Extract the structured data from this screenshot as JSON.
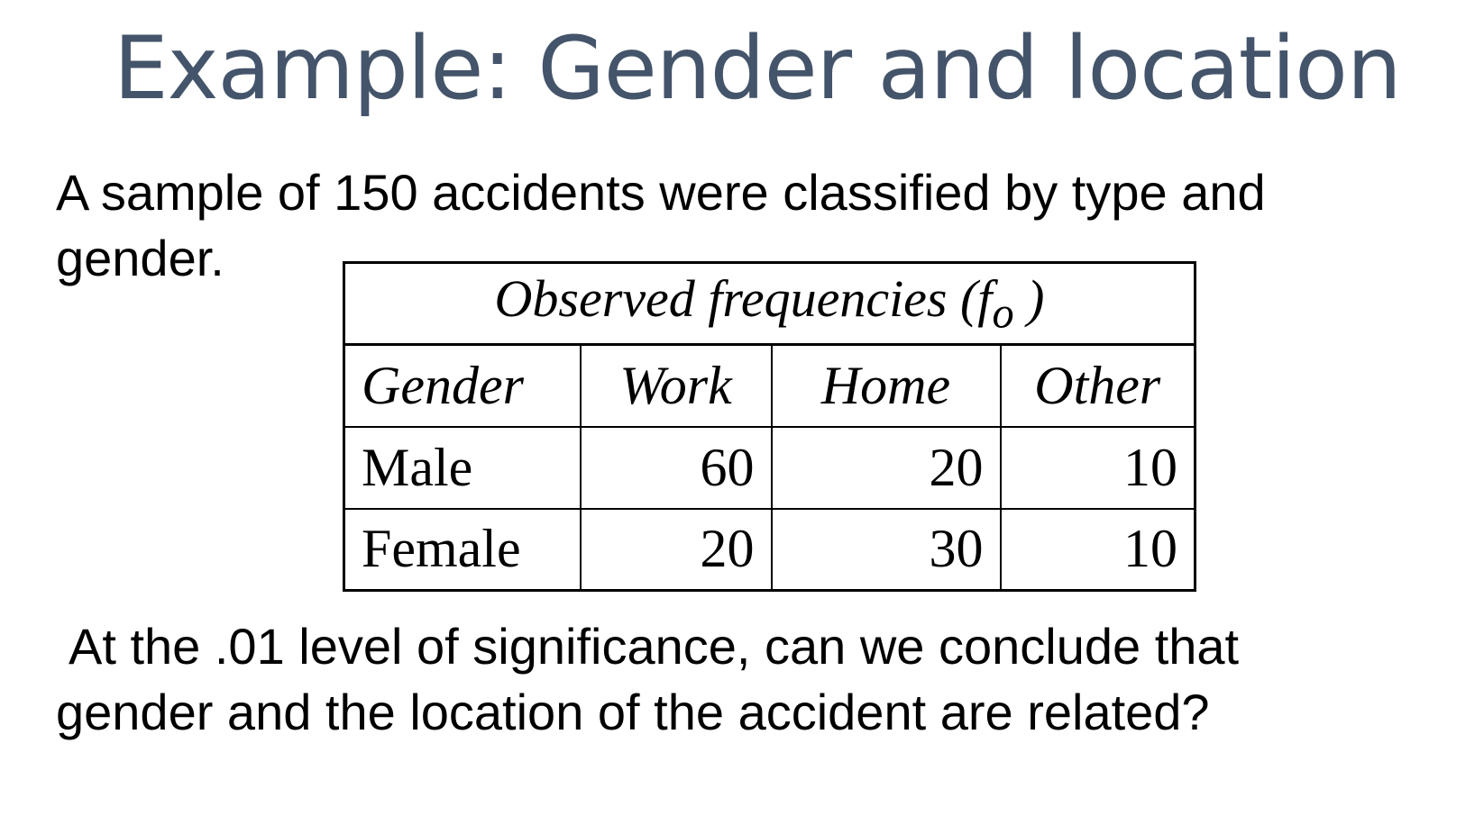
{
  "slide": {
    "title": "Example: Gender and location",
    "intro_line1": "A sample of 150 accidents were classified by type and",
    "intro_line2": "gender.",
    "question_line1": "At the .01 level of significance, can we conclude that",
    "question_line2": "gender and the location of the accident are related?"
  },
  "table": {
    "caption_main": "Observed frequencies (f",
    "caption_sub": "o",
    "caption_end": " )",
    "headers": [
      "Gender",
      "Work",
      "Home",
      "Other"
    ],
    "rows": [
      [
        "Male",
        "60",
        "20",
        "10"
      ],
      [
        "Female",
        "20",
        "30",
        "10"
      ]
    ]
  }
}
